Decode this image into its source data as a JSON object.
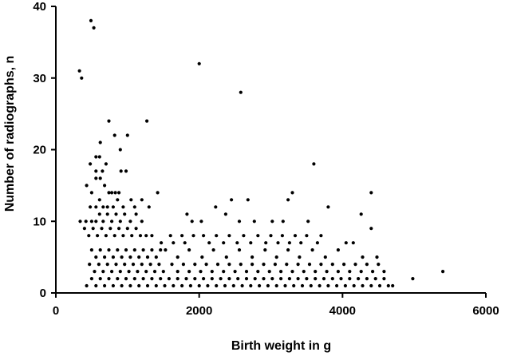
{
  "chart_data": {
    "type": "scatter",
    "xlabel": "Birth weight in g",
    "ylabel": "Number of radiographs, n",
    "xlim": [
      0,
      6000
    ],
    "ylim": [
      0,
      40
    ],
    "xticks": [
      0,
      2000,
      4000,
      6000
    ],
    "yticks": [
      0,
      10,
      20,
      30,
      40
    ],
    "grid": false,
    "series": [
      {
        "color": "#000000",
        "points": [
          [
            330,
            31
          ],
          [
            360,
            30
          ],
          [
            490,
            38
          ],
          [
            530,
            37
          ],
          [
            2000,
            32
          ],
          [
            2580,
            28
          ],
          [
            740,
            24
          ],
          [
            1270,
            24
          ],
          [
            820,
            22
          ],
          [
            1000,
            22
          ],
          [
            620,
            21
          ],
          [
            900,
            20
          ],
          [
            3600,
            18
          ],
          [
            480,
            18
          ],
          [
            560,
            19
          ],
          [
            610,
            19
          ],
          [
            700,
            18
          ],
          [
            650,
            17
          ],
          [
            560,
            17
          ],
          [
            980,
            17
          ],
          [
            910,
            17
          ],
          [
            430,
            15
          ],
          [
            500,
            14
          ],
          [
            560,
            16
          ],
          [
            620,
            16
          ],
          [
            680,
            15
          ],
          [
            740,
            14
          ],
          [
            780,
            14
          ],
          [
            830,
            14
          ],
          [
            880,
            14
          ],
          [
            4400,
            14
          ],
          [
            3300,
            14
          ],
          [
            1420,
            14
          ],
          [
            480,
            12
          ],
          [
            560,
            12
          ],
          [
            610,
            13
          ],
          [
            660,
            12
          ],
          [
            720,
            12
          ],
          [
            800,
            12
          ],
          [
            860,
            13
          ],
          [
            940,
            12
          ],
          [
            1050,
            13
          ],
          [
            1100,
            12
          ],
          [
            1200,
            13
          ],
          [
            1300,
            12
          ],
          [
            2450,
            13
          ],
          [
            2680,
            13
          ],
          [
            3240,
            13
          ],
          [
            2230,
            12
          ],
          [
            3800,
            12
          ],
          [
            340,
            10
          ],
          [
            420,
            10
          ],
          [
            500,
            10
          ],
          [
            560,
            10
          ],
          [
            610,
            11
          ],
          [
            660,
            10
          ],
          [
            720,
            11
          ],
          [
            780,
            10
          ],
          [
            840,
            11
          ],
          [
            900,
            10
          ],
          [
            960,
            11
          ],
          [
            1040,
            10
          ],
          [
            1120,
            11
          ],
          [
            1200,
            10
          ],
          [
            1830,
            11
          ],
          [
            1900,
            10
          ],
          [
            2030,
            10
          ],
          [
            2370,
            11
          ],
          [
            2560,
            10
          ],
          [
            2770,
            10
          ],
          [
            3020,
            10
          ],
          [
            3170,
            10
          ],
          [
            3520,
            10
          ],
          [
            4260,
            11
          ],
          [
            400,
            9
          ],
          [
            460,
            8
          ],
          [
            520,
            9
          ],
          [
            580,
            8
          ],
          [
            640,
            9
          ],
          [
            700,
            8
          ],
          [
            760,
            9
          ],
          [
            820,
            8
          ],
          [
            880,
            9
          ],
          [
            940,
            8
          ],
          [
            1000,
            9
          ],
          [
            1060,
            8
          ],
          [
            1120,
            9
          ],
          [
            1180,
            8
          ],
          [
            1260,
            8
          ],
          [
            1340,
            8
          ],
          [
            4400,
            9
          ],
          [
            1600,
            8
          ],
          [
            1760,
            8
          ],
          [
            1920,
            8
          ],
          [
            2060,
            8
          ],
          [
            2240,
            8
          ],
          [
            2420,
            8
          ],
          [
            2620,
            8
          ],
          [
            2820,
            8
          ],
          [
            3000,
            8
          ],
          [
            3160,
            8
          ],
          [
            3340,
            8
          ],
          [
            3500,
            8
          ],
          [
            3700,
            8
          ],
          [
            1470,
            7
          ],
          [
            1530,
            6
          ],
          [
            1640,
            7
          ],
          [
            1800,
            7
          ],
          [
            2140,
            7
          ],
          [
            2340,
            7
          ],
          [
            2530,
            7
          ],
          [
            2720,
            7
          ],
          [
            2930,
            7
          ],
          [
            3100,
            7
          ],
          [
            3260,
            7
          ],
          [
            3420,
            7
          ],
          [
            3650,
            7
          ],
          [
            4050,
            7
          ],
          [
            4150,
            7
          ],
          [
            500,
            6
          ],
          [
            560,
            5
          ],
          [
            620,
            6
          ],
          [
            680,
            5
          ],
          [
            740,
            6
          ],
          [
            800,
            5
          ],
          [
            860,
            6
          ],
          [
            920,
            5
          ],
          [
            980,
            6
          ],
          [
            1040,
            5
          ],
          [
            1100,
            6
          ],
          [
            1160,
            5
          ],
          [
            1220,
            6
          ],
          [
            1280,
            5
          ],
          [
            1340,
            6
          ],
          [
            1400,
            5
          ],
          [
            1460,
            6
          ],
          [
            1700,
            5
          ],
          [
            1860,
            6
          ],
          [
            2040,
            5
          ],
          [
            2200,
            6
          ],
          [
            2380,
            5
          ],
          [
            2560,
            6
          ],
          [
            2740,
            5
          ],
          [
            2920,
            6
          ],
          [
            3080,
            5
          ],
          [
            3240,
            6
          ],
          [
            3400,
            5
          ],
          [
            3580,
            6
          ],
          [
            3760,
            5
          ],
          [
            3940,
            6
          ],
          [
            4280,
            5
          ],
          [
            4480,
            5
          ],
          [
            470,
            4
          ],
          [
            540,
            3
          ],
          [
            600,
            4
          ],
          [
            660,
            3
          ],
          [
            720,
            4
          ],
          [
            780,
            3
          ],
          [
            840,
            4
          ],
          [
            900,
            3
          ],
          [
            960,
            4
          ],
          [
            1020,
            3
          ],
          [
            1080,
            4
          ],
          [
            1140,
            3
          ],
          [
            1200,
            4
          ],
          [
            1260,
            3
          ],
          [
            1320,
            4
          ],
          [
            1380,
            3
          ],
          [
            1440,
            4
          ],
          [
            1500,
            3
          ],
          [
            1620,
            4
          ],
          [
            1700,
            3
          ],
          [
            1780,
            4
          ],
          [
            1860,
            3
          ],
          [
            1940,
            4
          ],
          [
            2020,
            3
          ],
          [
            2100,
            4
          ],
          [
            2180,
            3
          ],
          [
            2260,
            4
          ],
          [
            2340,
            3
          ],
          [
            2420,
            4
          ],
          [
            2500,
            3
          ],
          [
            2580,
            4
          ],
          [
            2660,
            3
          ],
          [
            2740,
            4
          ],
          [
            2820,
            3
          ],
          [
            2900,
            4
          ],
          [
            2980,
            3
          ],
          [
            3060,
            4
          ],
          [
            3140,
            3
          ],
          [
            3220,
            4
          ],
          [
            3300,
            3
          ],
          [
            3380,
            4
          ],
          [
            3460,
            3
          ],
          [
            3540,
            4
          ],
          [
            3620,
            3
          ],
          [
            3700,
            4
          ],
          [
            3780,
            3
          ],
          [
            3860,
            4
          ],
          [
            3940,
            3
          ],
          [
            4020,
            4
          ],
          [
            4100,
            3
          ],
          [
            4180,
            4
          ],
          [
            4260,
            3
          ],
          [
            4340,
            4
          ],
          [
            4420,
            3
          ],
          [
            4500,
            4
          ],
          [
            4580,
            3
          ],
          [
            430,
            1
          ],
          [
            500,
            2
          ],
          [
            560,
            1
          ],
          [
            620,
            2
          ],
          [
            680,
            1
          ],
          [
            740,
            2
          ],
          [
            800,
            1
          ],
          [
            860,
            2
          ],
          [
            920,
            1
          ],
          [
            980,
            2
          ],
          [
            1040,
            1
          ],
          [
            1100,
            2
          ],
          [
            1160,
            1
          ],
          [
            1220,
            2
          ],
          [
            1280,
            1
          ],
          [
            1340,
            2
          ],
          [
            1400,
            1
          ],
          [
            1460,
            2
          ],
          [
            1520,
            1
          ],
          [
            1580,
            2
          ],
          [
            1640,
            1
          ],
          [
            1700,
            2
          ],
          [
            1760,
            1
          ],
          [
            1820,
            2
          ],
          [
            1880,
            1
          ],
          [
            1940,
            2
          ],
          [
            2000,
            1
          ],
          [
            2060,
            2
          ],
          [
            2120,
            1
          ],
          [
            2180,
            2
          ],
          [
            2240,
            1
          ],
          [
            2300,
            2
          ],
          [
            2360,
            1
          ],
          [
            2420,
            2
          ],
          [
            2480,
            1
          ],
          [
            2540,
            2
          ],
          [
            2600,
            1
          ],
          [
            2660,
            2
          ],
          [
            2720,
            1
          ],
          [
            2780,
            2
          ],
          [
            2840,
            1
          ],
          [
            2900,
            2
          ],
          [
            2960,
            1
          ],
          [
            3020,
            2
          ],
          [
            3080,
            1
          ],
          [
            3140,
            2
          ],
          [
            3200,
            1
          ],
          [
            3260,
            2
          ],
          [
            3320,
            1
          ],
          [
            3380,
            2
          ],
          [
            3440,
            1
          ],
          [
            3500,
            2
          ],
          [
            3560,
            1
          ],
          [
            3620,
            2
          ],
          [
            3680,
            1
          ],
          [
            3740,
            2
          ],
          [
            3800,
            1
          ],
          [
            3860,
            2
          ],
          [
            3920,
            1
          ],
          [
            3980,
            2
          ],
          [
            4040,
            1
          ],
          [
            4100,
            2
          ],
          [
            4160,
            1
          ],
          [
            4220,
            2
          ],
          [
            4280,
            1
          ],
          [
            4340,
            2
          ],
          [
            4400,
            1
          ],
          [
            4460,
            2
          ],
          [
            4520,
            1
          ],
          [
            4580,
            2
          ],
          [
            4640,
            1
          ],
          [
            4700,
            1
          ],
          [
            4980,
            2
          ],
          [
            5400,
            3
          ]
        ]
      }
    ]
  }
}
